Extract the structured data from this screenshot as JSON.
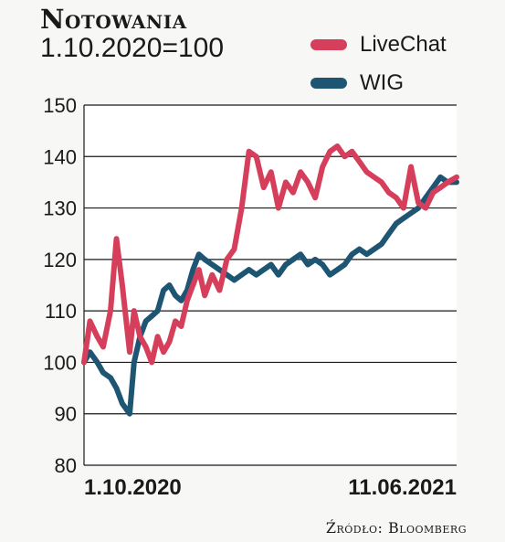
{
  "title": "Notowania",
  "subtitle": "1.10.2020=100",
  "source": "Źródło: Bloomberg",
  "colors": {
    "livechat": "#d63f5c",
    "wig": "#1e5573",
    "grid": "#1a1a1a"
  },
  "chart_data": {
    "type": "line",
    "title": "Notowania",
    "subtitle": "1.10.2020=100",
    "xlabel": "",
    "ylabel": "",
    "ylim": [
      80,
      150
    ],
    "yticks": [
      80,
      90,
      100,
      110,
      120,
      130,
      140,
      150
    ],
    "xlim": [
      "2020-10-01",
      "2021-06-11"
    ],
    "xticks": [
      "1.10.2020",
      "11.06.2021"
    ],
    "grid": "horizontal",
    "legend": "top-right",
    "series": [
      {
        "name": "LiveChat",
        "color": "#d63f5c",
        "x": [
          "2020-10-01",
          "2020-10-05",
          "2020-10-10",
          "2020-10-14",
          "2020-10-19",
          "2020-10-23",
          "2020-10-27",
          "2020-11-01",
          "2020-11-04",
          "2020-11-08",
          "2020-11-12",
          "2020-11-16",
          "2020-11-20",
          "2020-11-24",
          "2020-11-28",
          "2020-12-02",
          "2020-12-06",
          "2020-12-10",
          "2020-12-14",
          "2020-12-18",
          "2020-12-22",
          "2020-12-27",
          "2021-01-01",
          "2021-01-06",
          "2021-01-11",
          "2021-01-16",
          "2021-01-21",
          "2021-01-26",
          "2021-01-31",
          "2021-02-05",
          "2021-02-10",
          "2021-02-15",
          "2021-02-20",
          "2021-02-25",
          "2021-03-02",
          "2021-03-07",
          "2021-03-12",
          "2021-03-17",
          "2021-03-22",
          "2021-03-27",
          "2021-04-01",
          "2021-04-06",
          "2021-04-11",
          "2021-04-16",
          "2021-04-21",
          "2021-04-26",
          "2021-05-01",
          "2021-05-06",
          "2021-05-11",
          "2021-05-16",
          "2021-05-21",
          "2021-05-26",
          "2021-05-31",
          "2021-06-05",
          "2021-06-11"
        ],
        "values": [
          100,
          108,
          105,
          103,
          110,
          124,
          115,
          102,
          110,
          105,
          103,
          100,
          105,
          102,
          104,
          108,
          107,
          112,
          115,
          118,
          113,
          117,
          114,
          120,
          122,
          130,
          141,
          140,
          134,
          137,
          130,
          135,
          133,
          137,
          135,
          132,
          138,
          141,
          142,
          140,
          141,
          139,
          137,
          136,
          135,
          133,
          132,
          130,
          138,
          131,
          130,
          133,
          134,
          135,
          136
        ]
      },
      {
        "name": "WIG",
        "color": "#1e5573",
        "x": [
          "2020-10-01",
          "2020-10-05",
          "2020-10-10",
          "2020-10-14",
          "2020-10-19",
          "2020-10-23",
          "2020-10-27",
          "2020-11-01",
          "2020-11-04",
          "2020-11-08",
          "2020-11-12",
          "2020-11-16",
          "2020-11-20",
          "2020-11-24",
          "2020-11-28",
          "2020-12-02",
          "2020-12-06",
          "2020-12-10",
          "2020-12-14",
          "2020-12-18",
          "2020-12-22",
          "2020-12-27",
          "2021-01-01",
          "2021-01-06",
          "2021-01-11",
          "2021-01-16",
          "2021-01-21",
          "2021-01-26",
          "2021-01-31",
          "2021-02-05",
          "2021-02-10",
          "2021-02-15",
          "2021-02-20",
          "2021-02-25",
          "2021-03-02",
          "2021-03-07",
          "2021-03-12",
          "2021-03-17",
          "2021-03-22",
          "2021-03-27",
          "2021-04-01",
          "2021-04-06",
          "2021-04-11",
          "2021-04-16",
          "2021-04-21",
          "2021-04-26",
          "2021-05-01",
          "2021-05-06",
          "2021-05-11",
          "2021-05-16",
          "2021-05-21",
          "2021-05-26",
          "2021-05-31",
          "2021-06-05",
          "2021-06-11"
        ],
        "values": [
          100,
          102,
          100,
          98,
          97,
          95,
          92,
          90,
          100,
          105,
          108,
          109,
          110,
          114,
          115,
          113,
          112,
          114,
          118,
          121,
          120,
          119,
          118,
          117,
          116,
          117,
          118,
          117,
          118,
          119,
          117,
          119,
          120,
          121,
          119,
          120,
          119,
          117,
          118,
          119,
          121,
          122,
          121,
          122,
          123,
          125,
          127,
          128,
          129,
          130,
          132,
          134,
          136,
          135,
          135
        ]
      }
    ]
  }
}
